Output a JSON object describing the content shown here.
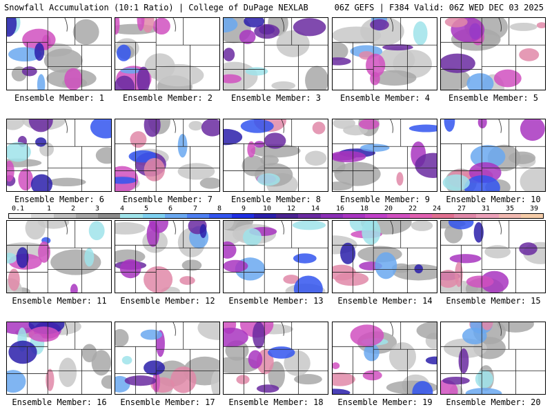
{
  "header": {
    "left_title": "Snowfall Accumulation (10:1 Ratio) | College of DuPage NEXLAB",
    "right_title": "06Z GEFS | F384 Valid: 06Z WED DEC 03 2025"
  },
  "panels": [
    {
      "label": "Ensemble Member: 1"
    },
    {
      "label": "Ensemble Member: 2"
    },
    {
      "label": "Ensemble Member: 3"
    },
    {
      "label": "Ensemble Member: 4"
    },
    {
      "label": "Ensemble Member: 5"
    },
    {
      "label": "Ensemble Member: 6"
    },
    {
      "label": "Ensemble Member: 7"
    },
    {
      "label": "Ensemble Member: 8"
    },
    {
      "label": "Ensemble Member: 9"
    },
    {
      "label": "Ensemble Member: 10"
    },
    {
      "label": "Ensemble Member: 11"
    },
    {
      "label": "Ensemble Member: 12"
    },
    {
      "label": "Ensemble Member: 13"
    },
    {
      "label": "Ensemble Member: 14"
    },
    {
      "label": "Ensemble Member: 15"
    },
    {
      "label": "Ensemble Member: 16"
    },
    {
      "label": "Ensemble Member: 17"
    },
    {
      "label": "Ensemble Member: 18"
    },
    {
      "label": "Ensemble Member: 19"
    },
    {
      "label": "Ensemble Member: 20"
    }
  ],
  "colorbar": {
    "labels": [
      "0.1",
      "1",
      "2",
      "3",
      "4",
      "5",
      "6",
      "7",
      "8",
      "9",
      "10",
      "12",
      "14",
      "16",
      "18",
      "20",
      "22",
      "24",
      "27",
      "31",
      "35",
      "39"
    ],
    "colors": [
      "#f2f2f2",
      "#d9d9d9",
      "#bfbfbf",
      "#a6a6a6",
      "#8c8c8c",
      "#9fe3ea",
      "#7ed0f0",
      "#6aa8f0",
      "#4f80f2",
      "#3355ee",
      "#1f2ee0",
      "#2a1faa",
      "#4a2290",
      "#6a2aa0",
      "#8a2fb5",
      "#a835c0",
      "#c040c8",
      "#d050c0",
      "#e060b0",
      "#e07090",
      "#e088a8",
      "#eba0b8",
      "#f0b8b0",
      "#f5cca8"
    ]
  }
}
